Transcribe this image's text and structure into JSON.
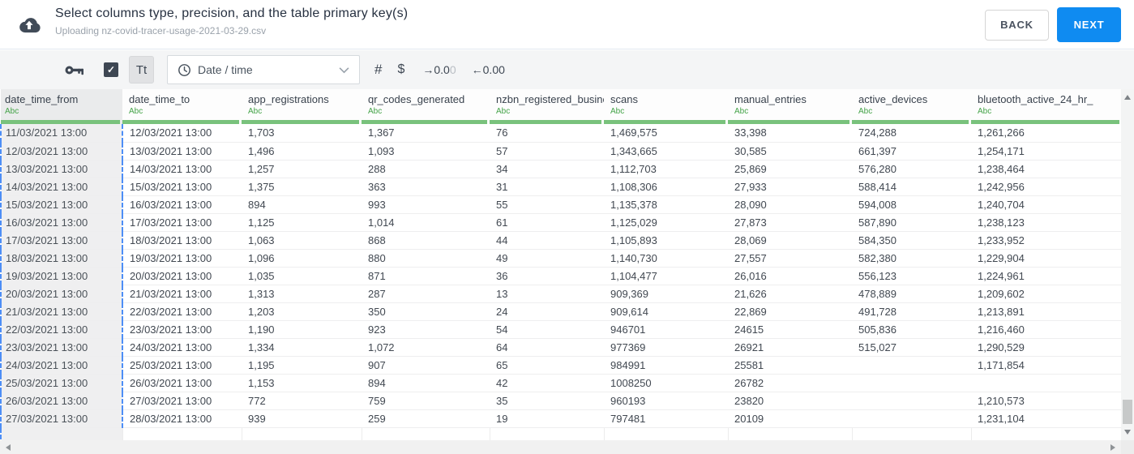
{
  "header": {
    "title": "Select columns type, precision, and the table primary key(s)",
    "subtitle": "Uploading nz-covid-tracer-usage-2021-03-29.csv",
    "back_label": "BACK",
    "next_label": "NEXT"
  },
  "toolbar": {
    "checkbox_checked": true,
    "checkmark": "✓",
    "text_type_label": "Tt",
    "type_dropdown": {
      "value": "Date / time"
    },
    "number_label": "#",
    "currency_label": "$",
    "increase_decimal": {
      "prefix": "→0.0",
      "muted": "0"
    },
    "decrease_decimal": {
      "prefix": "←0.00",
      "muted": ""
    }
  },
  "colors": {
    "primary_blue": "#0f8bf1",
    "type_green": "#44a348",
    "green_bar": "#79c27c",
    "selection_dashed_blue": "#4d8ef6",
    "icon_dark": "#3e4753"
  },
  "table": {
    "type_label": "Abc",
    "selected_column": "date_time_from",
    "columns": [
      "date_time_from",
      "date_time_to",
      "app_registrations",
      "qr_codes_generated",
      "nzbn_registered_busine",
      "scans",
      "manual_entries",
      "active_devices",
      "bluetooth_active_24_hr_"
    ],
    "rows": [
      [
        "11/03/2021 13:00",
        "12/03/2021 13:00",
        "1,703",
        "1,367",
        "76",
        "1,469,575",
        "33,398",
        "724,288",
        "1,261,266"
      ],
      [
        "12/03/2021 13:00",
        "13/03/2021 13:00",
        "1,496",
        "1,093",
        "57",
        "1,343,665",
        "30,585",
        "661,397",
        "1,254,171"
      ],
      [
        "13/03/2021 13:00",
        "14/03/2021 13:00",
        "1,257",
        "288",
        "34",
        "1,112,703",
        "25,869",
        "576,280",
        "1,238,464"
      ],
      [
        "14/03/2021 13:00",
        "15/03/2021 13:00",
        "1,375",
        "363",
        "31",
        "1,108,306",
        "27,933",
        "588,414",
        "1,242,956"
      ],
      [
        "15/03/2021 13:00",
        "16/03/2021 13:00",
        "894",
        "993",
        "55",
        "1,135,378",
        "28,090",
        "594,008",
        "1,240,704"
      ],
      [
        "16/03/2021 13:00",
        "17/03/2021 13:00",
        "1,125",
        "1,014",
        "61",
        "1,125,029",
        "27,873",
        "587,890",
        "1,238,123"
      ],
      [
        "17/03/2021 13:00",
        "18/03/2021 13:00",
        "1,063",
        "868",
        "44",
        "1,105,893",
        "28,069",
        "584,350",
        "1,233,952"
      ],
      [
        "18/03/2021 13:00",
        "19/03/2021 13:00",
        "1,096",
        "880",
        "49",
        "1,140,730",
        "27,557",
        "582,380",
        "1,229,904"
      ],
      [
        "19/03/2021 13:00",
        "20/03/2021 13:00",
        "1,035",
        "871",
        "36",
        "1,104,477",
        "26,016",
        "556,123",
        "1,224,961"
      ],
      [
        "20/03/2021 13:00",
        "21/03/2021 13:00",
        "1,313",
        "287",
        "13",
        "909,369",
        "21,626",
        "478,889",
        "1,209,602"
      ],
      [
        "21/03/2021 13:00",
        "22/03/2021 13:00",
        "1,203",
        "350",
        "24",
        "909,614",
        "22,869",
        "491,728",
        "1,213,891"
      ],
      [
        "22/03/2021 13:00",
        "23/03/2021 13:00",
        "1,190",
        "923",
        "54",
        "946701",
        "24615",
        "505,836",
        "1,216,460"
      ],
      [
        "23/03/2021 13:00",
        "24/03/2021 13:00",
        "1,334",
        "1,072",
        "64",
        "977369",
        "26921",
        "515,027",
        "1,290,529"
      ],
      [
        "24/03/2021 13:00",
        "25/03/2021 13:00",
        "1,195",
        "907",
        "65",
        "984991",
        "25581",
        "",
        "1,171,854"
      ],
      [
        "25/03/2021 13:00",
        "26/03/2021 13:00",
        "1,153",
        "894",
        "42",
        "1008250",
        "26782",
        "",
        ""
      ],
      [
        "26/03/2021 13:00",
        "27/03/2021 13:00",
        "772",
        "759",
        "35",
        "960193",
        "23820",
        "",
        "1,210,573"
      ],
      [
        "27/03/2021 13:00",
        "28/03/2021 13:00",
        "939",
        "259",
        "19",
        "797481",
        "20109",
        "",
        "1,231,104"
      ],
      [
        "",
        "",
        "",
        "",
        "",
        "",
        "",
        "",
        ""
      ]
    ]
  }
}
